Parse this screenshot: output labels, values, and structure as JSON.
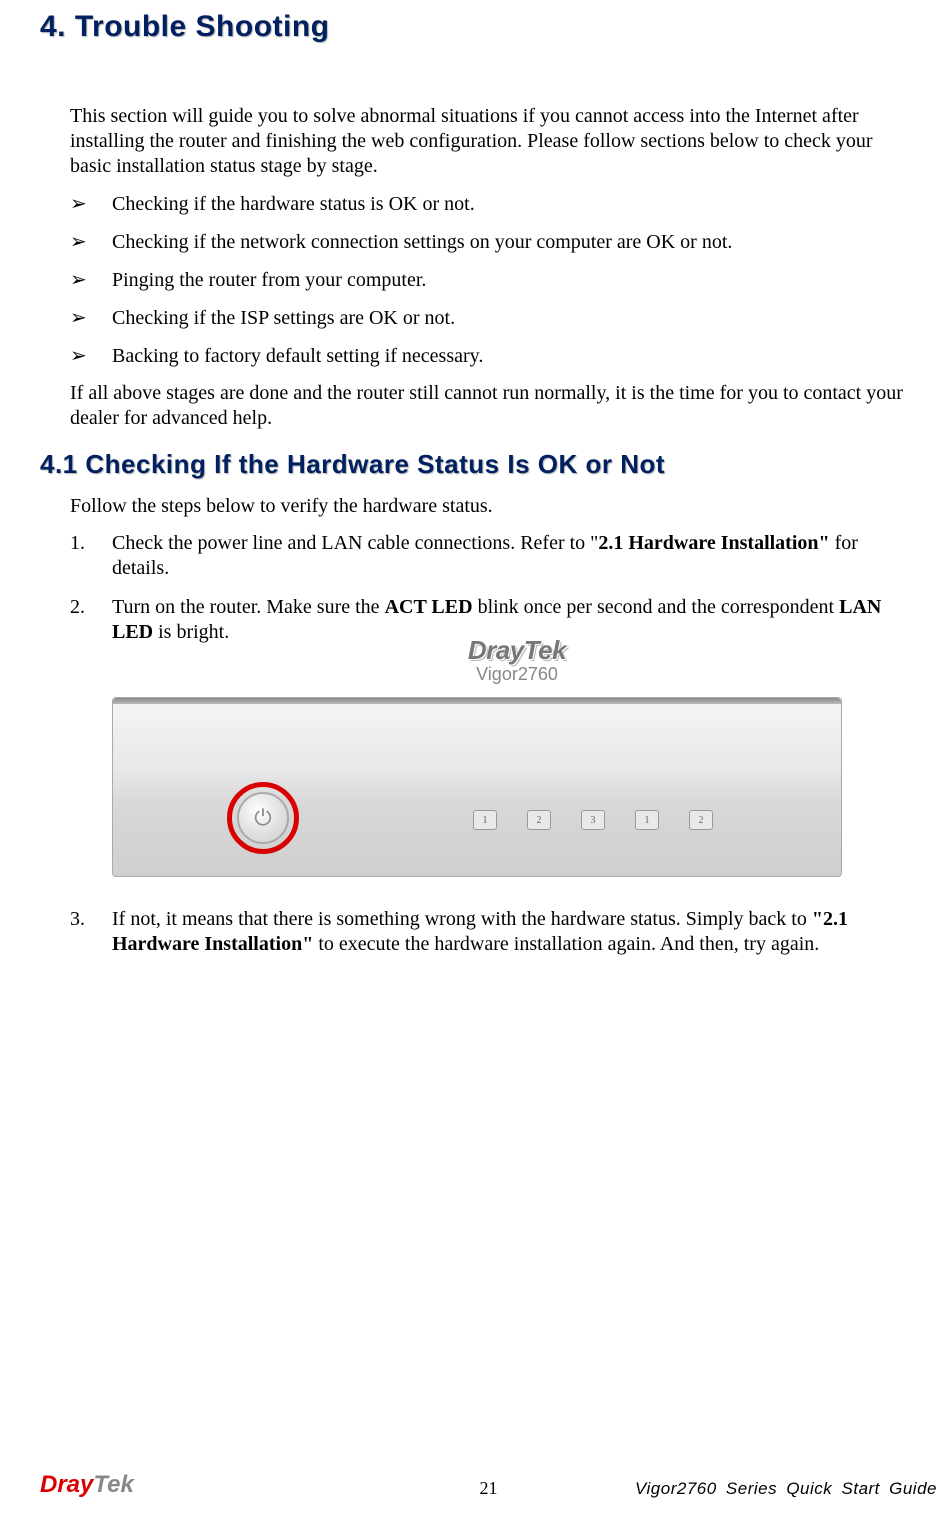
{
  "heading": "4. Trouble Shooting",
  "intro": "This section will guide you to solve abnormal situations if you cannot access into the Internet after installing the router and finishing the web configuration. Please follow sections below to check your basic installation status stage by stage.",
  "bullets": [
    "Checking if the hardware status is OK or not.",
    "Checking if the network connection settings on your computer are OK or not.",
    "Pinging the router from your computer.",
    "Checking if the ISP settings are OK or not.",
    "Backing to factory default setting if necessary."
  ],
  "followup": "If all above stages are done and the router still cannot run normally, it is the time for you to contact your dealer for advanced help.",
  "subheading": "4.1 Checking If the Hardware Status Is OK or Not",
  "subintro": "Follow the steps below to verify the hardware status.",
  "steps": {
    "s1_num": "1.",
    "s1_a": "Check the power line and LAN cable connections. Refer to \"",
    "s1_b": "2.1 Hardware Installation\"",
    "s1_c": " for details.",
    "s2_num": "2.",
    "s2_a": "Turn on the router. Make sure the ",
    "s2_b": "ACT LED",
    "s2_c": " blink once per second and the correspondent ",
    "s2_d": "LAN LED",
    "s2_e": " is bright.",
    "s3_num": "3.",
    "s3_a": "If not, it means that there is something wrong with the hardware status. Simply back to ",
    "s3_b": "\"2.1 Hardware Installation\"",
    "s3_c": " to execute the hardware installation again. And then, try again."
  },
  "router": {
    "brand": "DrayTek",
    "model": "Vigor2760",
    "power_icon": "⏻",
    "leds": [
      "1",
      "2",
      "3",
      "1",
      "2"
    ]
  },
  "footer": {
    "logo_red": "Dray",
    "logo_grey": "Tek",
    "page": "21",
    "title": "Vigor2760 Series Quick Start Guide"
  },
  "colors": {
    "heading_color": "#002060",
    "ring_color": "#d80000",
    "text_color": "#000000",
    "background": "#ffffff"
  },
  "typography": {
    "heading_fontsize": 30,
    "subheading_fontsize": 26,
    "body_fontsize": 20,
    "body_family": "Times New Roman",
    "heading_family": "Verdana"
  }
}
